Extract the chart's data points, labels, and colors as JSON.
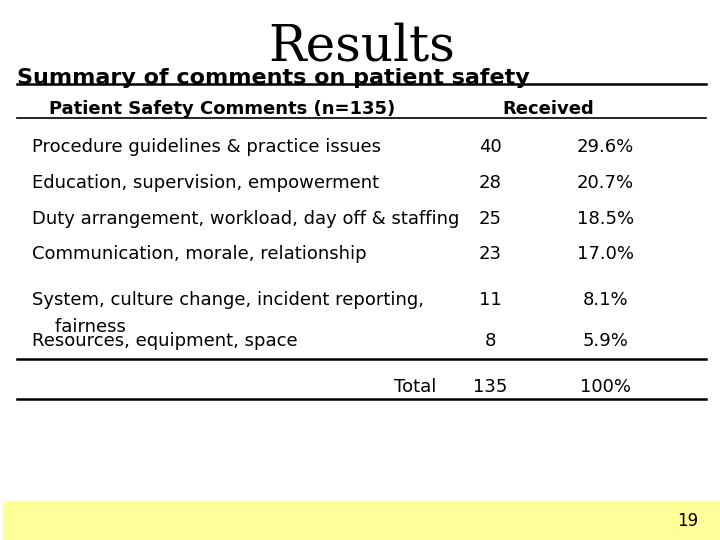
{
  "title": "Results",
  "subtitle": "Summary of comments on patient safety",
  "header_col1": "Patient Safety Comments (n=135)",
  "header_col2": "Received",
  "rows": [
    {
      "label": "Procedure guidelines & practice issues",
      "label2": null,
      "count": "40",
      "pct": "29.6%"
    },
    {
      "label": "Education, supervision, empowerment",
      "label2": null,
      "count": "28",
      "pct": "20.7%"
    },
    {
      "label": "Duty arrangement, workload, day off & staffing",
      "label2": null,
      "count": "25",
      "pct": "18.5%"
    },
    {
      "label": "Communication, morale, relationship",
      "label2": null,
      "count": "23",
      "pct": "17.0%"
    },
    {
      "label": "System, culture change, incident reporting,",
      "label2": "    fairness",
      "count": "11",
      "pct": "8.1%"
    },
    {
      "label": "Resources, equipment, space",
      "label2": null,
      "count": "8",
      "pct": "5.9%"
    }
  ],
  "total_label": "Total",
  "total_count": "135",
  "total_pct": "100%",
  "page_number": "19",
  "bg_color": "#ffffff",
  "text_color": "#000000",
  "title_fontsize": 36,
  "subtitle_fontsize": 16,
  "header_fontsize": 13,
  "row_fontsize": 13,
  "total_fontsize": 13,
  "page_fontsize": 12,
  "yellow_bar_color": "#ffff99"
}
